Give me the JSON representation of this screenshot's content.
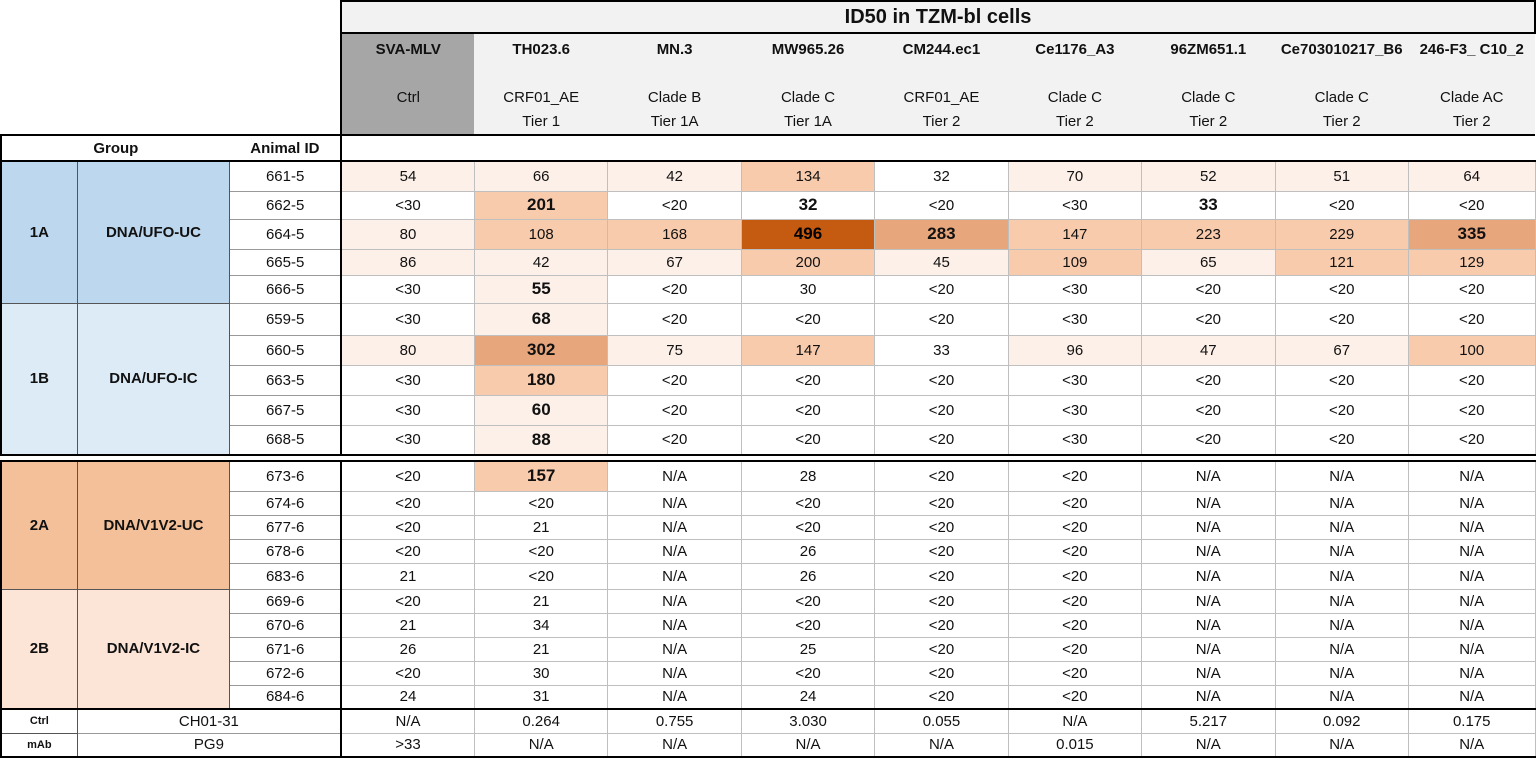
{
  "table": {
    "title": "ID50 in TZM-bl cells",
    "group_header": "Group",
    "animal_header": "Animal ID",
    "viruses": [
      {
        "name": "SVA-MLV",
        "line1": "Ctrl",
        "line2": ""
      },
      {
        "name": "TH023.6",
        "line1": "CRF01_AE",
        "line2": "Tier 1"
      },
      {
        "name": "MN.3",
        "line1": "Clade B",
        "line2": "Tier 1A"
      },
      {
        "name": "MW965.26",
        "line1": "Clade C",
        "line2": "Tier 1A"
      },
      {
        "name": "CM244.ec1",
        "line1": "CRF01_AE",
        "line2": "Tier 2"
      },
      {
        "name": "Ce1176_A3",
        "line1": "Clade C",
        "line2": "Tier 2"
      },
      {
        "name": "96ZM651.1",
        "line1": "Clade C",
        "line2": "Tier 2"
      },
      {
        "name": "Ce703010217_B6",
        "line1": "Clade C",
        "line2": "Tier 2"
      },
      {
        "name": "246-F3_ C10_2",
        "line1": "Clade AC",
        "line2": "Tier 2"
      }
    ],
    "groups": [
      {
        "id": "1A",
        "name": "DNA/UFO-UC",
        "color": "#bdd7ee",
        "rows": [
          {
            "animal": "661-5",
            "values": [
              "54",
              "66",
              "42",
              "134",
              "32",
              "70",
              "52",
              "51",
              "64"
            ]
          },
          {
            "animal": "662-5",
            "values": [
              "<30",
              "201",
              "<20",
              "32",
              "<20",
              "<30",
              "33",
              "<20",
              "<20"
            ]
          },
          {
            "animal": "664-5",
            "values": [
              "80",
              "108",
              "168",
              "496",
              "283",
              "147",
              "223",
              "229",
              "335"
            ]
          },
          {
            "animal": "665-5",
            "values": [
              "86",
              "42",
              "67",
              "200",
              "45",
              "109",
              "65",
              "121",
              "129"
            ]
          },
          {
            "animal": "666-5",
            "values": [
              "<30",
              "55",
              "<20",
              "30",
              "<20",
              "<30",
              "<20",
              "<20",
              "<20"
            ]
          }
        ]
      },
      {
        "id": "1B",
        "name": "DNA/UFO-IC",
        "color": "#ddebf7",
        "rows": [
          {
            "animal": "659-5",
            "values": [
              "<30",
              "68",
              "<20",
              "<20",
              "<20",
              "<30",
              "<20",
              "<20",
              "<20"
            ]
          },
          {
            "animal": "660-5",
            "values": [
              "80",
              "302",
              "75",
              "147",
              "33",
              "96",
              "47",
              "67",
              "100"
            ]
          },
          {
            "animal": "663-5",
            "values": [
              "<30",
              "180",
              "<20",
              "<20",
              "<20",
              "<30",
              "<20",
              "<20",
              "<20"
            ]
          },
          {
            "animal": "667-5",
            "values": [
              "<30",
              "60",
              "<20",
              "<20",
              "<20",
              "<30",
              "<20",
              "<20",
              "<20"
            ]
          },
          {
            "animal": "668-5",
            "values": [
              "<30",
              "88",
              "<20",
              "<20",
              "<20",
              "<30",
              "<20",
              "<20",
              "<20"
            ]
          }
        ]
      },
      {
        "id": "2A",
        "name": "DNA/V1V2-UC",
        "color": "#f4c09a",
        "rows": [
          {
            "animal": "673-6",
            "values": [
              "<20",
              "157",
              "N/A",
              "28",
              "<20",
              "<20",
              "N/A",
              "N/A",
              "N/A"
            ]
          },
          {
            "animal": "674-6",
            "values": [
              "<20",
              "<20",
              "N/A",
              "<20",
              "<20",
              "<20",
              "N/A",
              "N/A",
              "N/A"
            ]
          },
          {
            "animal": "677-6",
            "values": [
              "<20",
              "21",
              "N/A",
              "<20",
              "<20",
              "<20",
              "N/A",
              "N/A",
              "N/A"
            ]
          },
          {
            "animal": "678-6",
            "values": [
              "<20",
              "<20",
              "N/A",
              "26",
              "<20",
              "<20",
              "N/A",
              "N/A",
              "N/A"
            ]
          },
          {
            "animal": "683-6",
            "values": [
              "21",
              "<20",
              "N/A",
              "26",
              "<20",
              "<20",
              "N/A",
              "N/A",
              "N/A"
            ]
          }
        ]
      },
      {
        "id": "2B",
        "name": "DNA/V1V2-IC",
        "color": "#fce4d6",
        "rows": [
          {
            "animal": "669-6",
            "values": [
              "<20",
              "21",
              "N/A",
              "<20",
              "<20",
              "<20",
              "N/A",
              "N/A",
              "N/A"
            ]
          },
          {
            "animal": "670-6",
            "values": [
              "21",
              "34",
              "N/A",
              "<20",
              "<20",
              "<20",
              "N/A",
              "N/A",
              "N/A"
            ]
          },
          {
            "animal": "671-6",
            "values": [
              "26",
              "21",
              "N/A",
              "25",
              "<20",
              "<20",
              "N/A",
              "N/A",
              "N/A"
            ]
          },
          {
            "animal": "672-6",
            "values": [
              "<20",
              "30",
              "N/A",
              "<20",
              "<20",
              "<20",
              "N/A",
              "N/A",
              "N/A"
            ]
          },
          {
            "animal": "684-6",
            "values": [
              "24",
              "31",
              "N/A",
              "24",
              "<20",
              "<20",
              "N/A",
              "N/A",
              "N/A"
            ]
          }
        ]
      }
    ],
    "controls": [
      {
        "label": "Ctrl",
        "name": "CH01-31",
        "values": [
          "N/A",
          "0.264",
          "0.755",
          "3.030",
          "0.055",
          "N/A",
          "5.217",
          "0.092",
          "0.175"
        ]
      },
      {
        "label": "mAb",
        "name": "PG9",
        "values": [
          ">33",
          "N/A",
          "N/A",
          "N/A",
          "N/A",
          "0.015",
          "N/A",
          "N/A",
          "N/A"
        ]
      }
    ],
    "heat_colors": {
      "none": "#ffffff",
      "low": "#fdf0e8",
      "mid": "#f8cbad",
      "high": "#e8a67d",
      "max": "#c55a11"
    },
    "bold_cells": [
      [
        1,
        1
      ],
      [
        1,
        3
      ],
      [
        1,
        6
      ],
      [
        2,
        3
      ],
      [
        2,
        4
      ],
      [
        2,
        8
      ],
      [
        4,
        1
      ],
      [
        5,
        1
      ],
      [
        6,
        1
      ],
      [
        7,
        1
      ],
      [
        8,
        1
      ],
      [
        9,
        1
      ],
      [
        10,
        1
      ]
    ]
  }
}
